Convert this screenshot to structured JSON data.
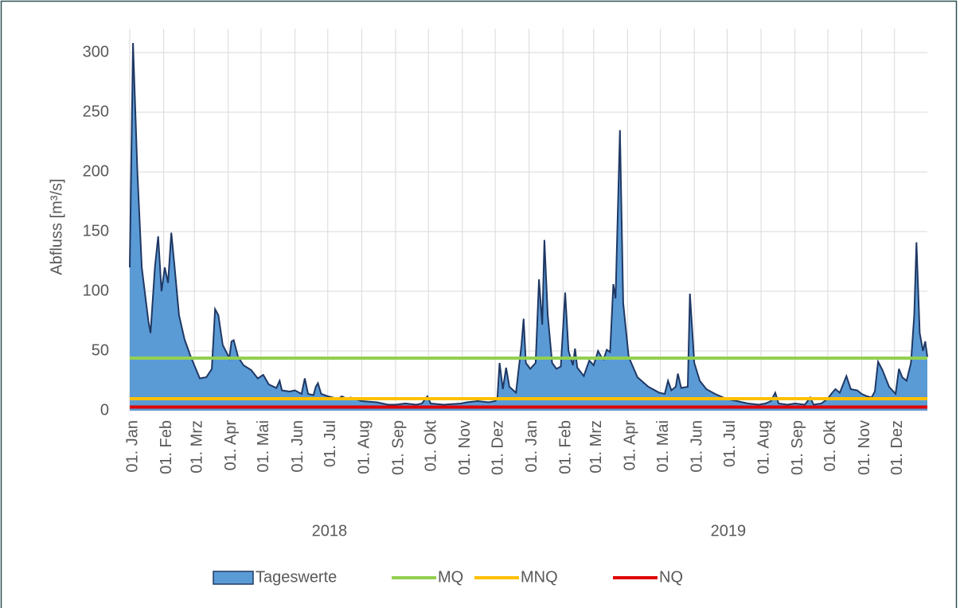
{
  "chart_data": {
    "type": "area",
    "ylabel": "Abfluss [m³/s]",
    "x": [
      "2018-01-01",
      "2018-01-04",
      "2018-01-08",
      "2018-01-12",
      "2018-01-18",
      "2018-01-20",
      "2018-01-24",
      "2018-01-27",
      "2018-01-30",
      "2018-02-02",
      "2018-02-05",
      "2018-02-08",
      "2018-02-11",
      "2018-02-15",
      "2018-02-20",
      "2018-02-25",
      "2018-03-01",
      "2018-03-06",
      "2018-03-12",
      "2018-03-17",
      "2018-03-20",
      "2018-03-23",
      "2018-03-27",
      "2018-04-02",
      "2018-04-04",
      "2018-04-06",
      "2018-04-10",
      "2018-04-15",
      "2018-04-22",
      "2018-04-28",
      "2018-05-03",
      "2018-05-08",
      "2018-05-15",
      "2018-05-18",
      "2018-05-20",
      "2018-05-27",
      "2018-06-01",
      "2018-06-07",
      "2018-06-10",
      "2018-06-13",
      "2018-06-18",
      "2018-06-20",
      "2018-06-22",
      "2018-06-25",
      "2018-07-01",
      "2018-07-10",
      "2018-07-14",
      "2018-07-18",
      "2018-07-22",
      "2018-08-01",
      "2018-08-15",
      "2018-08-25",
      "2018-09-01",
      "2018-09-10",
      "2018-09-20",
      "2018-09-25",
      "2018-09-30",
      "2018-10-03",
      "2018-10-15",
      "2018-10-31",
      "2018-11-05",
      "2018-11-15",
      "2018-11-25",
      "2018-12-01",
      "2018-12-03",
      "2018-12-05",
      "2018-12-08",
      "2018-12-11",
      "2018-12-14",
      "2018-12-20",
      "2018-12-25",
      "2018-12-27",
      "2018-12-29",
      "2019-01-02",
      "2019-01-07",
      "2019-01-10",
      "2019-01-13",
      "2019-01-15",
      "2019-01-18",
      "2019-01-22",
      "2019-01-26",
      "2019-01-30",
      "2019-02-03",
      "2019-02-06",
      "2019-02-10",
      "2019-02-12",
      "2019-02-14",
      "2019-02-20",
      "2019-02-25",
      "2019-03-01",
      "2019-03-05",
      "2019-03-08",
      "2019-03-10",
      "2019-03-13",
      "2019-03-16",
      "2019-03-19",
      "2019-03-21",
      "2019-03-25",
      "2019-03-28",
      "2019-04-02",
      "2019-04-10",
      "2019-04-20",
      "2019-04-30",
      "2019-05-05",
      "2019-05-08",
      "2019-05-11",
      "2019-05-15",
      "2019-05-17",
      "2019-05-20",
      "2019-05-26",
      "2019-05-28",
      "2019-06-01",
      "2019-06-06",
      "2019-06-12",
      "2019-06-20",
      "2019-06-30",
      "2019-07-10",
      "2019-07-20",
      "2019-07-30",
      "2019-08-05",
      "2019-08-10",
      "2019-08-14",
      "2019-08-17",
      "2019-08-25",
      "2019-09-01",
      "2019-09-10",
      "2019-09-15",
      "2019-09-18",
      "2019-09-25",
      "2019-10-01",
      "2019-10-05",
      "2019-10-08",
      "2019-10-12",
      "2019-10-18",
      "2019-10-22",
      "2019-10-28",
      "2019-11-01",
      "2019-11-06",
      "2019-11-10",
      "2019-11-13",
      "2019-11-16",
      "2019-11-20",
      "2019-11-26",
      "2019-12-02",
      "2019-12-05",
      "2019-12-08",
      "2019-12-12",
      "2019-12-16",
      "2019-12-19",
      "2019-12-21",
      "2019-12-24",
      "2019-12-27",
      "2019-12-29",
      "2019-12-31"
    ],
    "series": [
      {
        "name": "Tageswerte",
        "type": "area",
        "color": "#5b9bd5",
        "line_color": "#1f3864",
        "values": [
          120,
          308,
          200,
          120,
          75,
          65,
          120,
          146,
          100,
          120,
          107,
          149,
          120,
          80,
          60,
          47,
          38,
          27,
          28,
          35,
          85,
          80,
          55,
          44,
          58,
          59,
          45,
          38,
          34,
          27,
          30,
          22,
          19,
          25,
          17,
          16,
          17,
          14,
          27,
          14,
          13,
          20,
          23,
          14,
          12,
          10,
          12,
          10,
          11,
          8,
          7,
          5,
          5,
          6,
          5,
          6,
          12,
          6,
          5,
          6,
          7,
          8,
          7,
          8,
          10,
          40,
          18,
          36,
          20,
          15,
          55,
          77,
          40,
          35,
          40,
          110,
          72,
          143,
          80,
          40,
          35,
          37,
          99,
          50,
          38,
          52,
          36,
          29,
          42,
          38,
          50,
          45,
          43,
          51,
          49,
          106,
          94,
          235,
          90,
          45,
          28,
          20,
          15,
          14,
          25,
          17,
          20,
          31,
          19,
          20,
          98,
          40,
          25,
          18,
          14,
          10,
          8,
          6,
          5,
          6,
          8,
          15,
          6,
          5,
          6,
          5,
          11,
          5,
          6,
          10,
          15,
          18,
          15,
          29,
          18,
          17,
          14,
          12,
          11,
          16,
          41,
          34,
          20,
          14,
          35,
          28,
          25,
          40,
          80,
          141,
          65,
          50,
          58,
          45
        ]
      },
      {
        "name": "MQ",
        "type": "hline",
        "color": "#92d050",
        "value": 44
      },
      {
        "name": "MNQ",
        "type": "hline",
        "color": "#ffc000",
        "value": 10
      },
      {
        "name": "NQ",
        "type": "hline",
        "color": "#e00000",
        "value": 3
      }
    ],
    "xlim": [
      "2018-01-01",
      "2019-12-31"
    ],
    "xticks": [
      {
        "value": "2018-01-01",
        "label": "01. Jan"
      },
      {
        "value": "2018-02-01",
        "label": "01. Feb"
      },
      {
        "value": "2018-03-01",
        "label": "01. Mrz"
      },
      {
        "value": "2018-04-01",
        "label": "01. Apr"
      },
      {
        "value": "2018-05-01",
        "label": "01. Mai"
      },
      {
        "value": "2018-06-01",
        "label": "01. Jun"
      },
      {
        "value": "2018-07-01",
        "label": "01. Jul"
      },
      {
        "value": "2018-08-01",
        "label": "01. Aug"
      },
      {
        "value": "2018-09-01",
        "label": "01. Sep"
      },
      {
        "value": "2018-10-01",
        "label": "01. Okt"
      },
      {
        "value": "2018-11-01",
        "label": "01. Nov"
      },
      {
        "value": "2018-12-01",
        "label": "01. Dez"
      },
      {
        "value": "2019-01-01",
        "label": "01. Jan"
      },
      {
        "value": "2019-02-01",
        "label": "01. Feb"
      },
      {
        "value": "2019-03-01",
        "label": "01. Mrz"
      },
      {
        "value": "2019-04-01",
        "label": "01. Apr"
      },
      {
        "value": "2019-05-01",
        "label": "01. Mai"
      },
      {
        "value": "2019-06-01",
        "label": "01. Jun"
      },
      {
        "value": "2019-07-01",
        "label": "01. Jul"
      },
      {
        "value": "2019-08-01",
        "label": "01. Aug"
      },
      {
        "value": "2019-09-01",
        "label": "01. Sep"
      },
      {
        "value": "2019-10-01",
        "label": "01. Okt"
      },
      {
        "value": "2019-11-01",
        "label": "01. Nov"
      },
      {
        "value": "2019-12-01",
        "label": "01. Dez"
      }
    ],
    "x_groups": [
      "2018",
      "2019"
    ],
    "ylim": [
      0,
      320
    ],
    "yticks": [
      0,
      50,
      100,
      150,
      200,
      250,
      300
    ],
    "grid": true,
    "legend": "bottom"
  }
}
